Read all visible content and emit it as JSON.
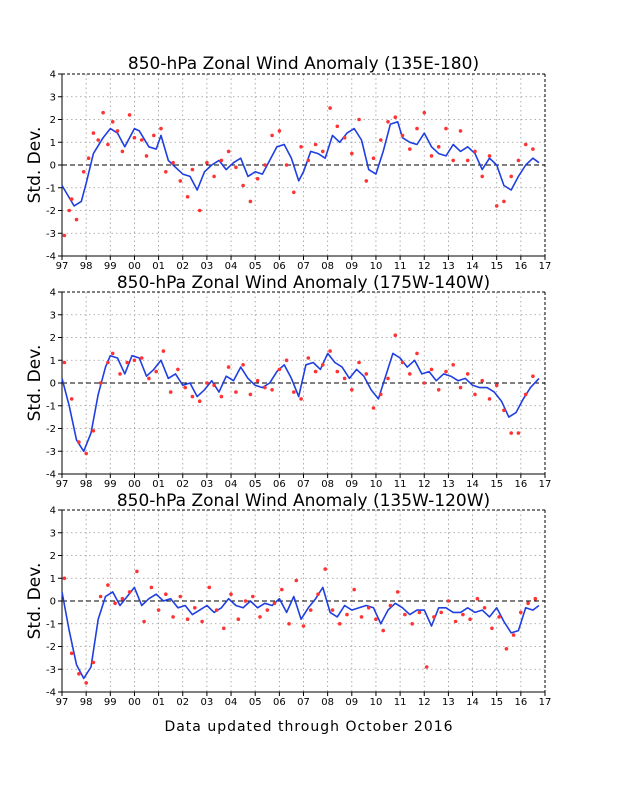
{
  "footer": "Data updated through October 2016",
  "colors": {
    "line": "#1f3fe0",
    "points": "#ff3333",
    "grid": "#999999",
    "frame": "#000000"
  },
  "chart_data": [
    {
      "type": "line",
      "title": "850-hPa Zonal Wind Anomaly (135E-180)",
      "ylabel": "Std. Dev.",
      "xlabel": "",
      "xlim": [
        1997,
        2017
      ],
      "ylim": [
        -4,
        4
      ],
      "xticks": [
        "97",
        "98",
        "99",
        "00",
        "01",
        "02",
        "03",
        "04",
        "05",
        "06",
        "07",
        "08",
        "09",
        "10",
        "11",
        "12",
        "13",
        "14",
        "15",
        "16",
        "17"
      ],
      "yticks": [
        -4,
        -3,
        -2,
        -1,
        0,
        1,
        2,
        3,
        4
      ],
      "grid": true,
      "series": [
        {
          "kind": "line",
          "x": [
            1997.0,
            1997.5,
            1997.8,
            1998.0,
            1998.3,
            1998.7,
            1999.0,
            1999.3,
            1999.6,
            2000.0,
            2000.2,
            2000.6,
            2000.9,
            2001.1,
            2001.4,
            2001.7,
            2002.0,
            2002.3,
            2002.6,
            2002.9,
            2003.2,
            2003.5,
            2003.8,
            2004.1,
            2004.4,
            2004.7,
            2005.0,
            2005.3,
            2005.6,
            2005.9,
            2006.2,
            2006.5,
            2006.8,
            2007.0,
            2007.3,
            2007.6,
            2007.9,
            2008.2,
            2008.5,
            2008.8,
            2009.1,
            2009.4,
            2009.7,
            2010.0,
            2010.3,
            2010.6,
            2010.9,
            2011.1,
            2011.4,
            2011.7,
            2012.0,
            2012.3,
            2012.6,
            2012.9,
            2013.2,
            2013.5,
            2013.8,
            2014.1,
            2014.4,
            2014.7,
            2015.0,
            2015.3,
            2015.6,
            2015.9,
            2016.2,
            2016.5,
            2016.75
          ],
          "y": [
            -0.9,
            -1.8,
            -1.6,
            -0.8,
            0.5,
            1.2,
            1.6,
            1.4,
            0.8,
            1.6,
            1.5,
            0.8,
            0.7,
            1.3,
            0.2,
            -0.1,
            -0.4,
            -0.5,
            -1.1,
            -0.3,
            0.0,
            0.2,
            -0.2,
            0.1,
            0.3,
            -0.5,
            -0.3,
            -0.4,
            0.2,
            0.8,
            0.9,
            0.3,
            -0.7,
            -0.3,
            0.6,
            0.5,
            0.3,
            1.3,
            1.0,
            1.4,
            1.6,
            1.1,
            -0.2,
            -0.4,
            0.6,
            1.8,
            1.9,
            1.2,
            1.0,
            0.9,
            1.4,
            0.8,
            0.5,
            0.4,
            0.9,
            0.6,
            0.8,
            0.5,
            -0.2,
            0.3,
            0.0,
            -0.9,
            -1.1,
            -0.5,
            0.0,
            0.3,
            0.1
          ]
        },
        {
          "kind": "points",
          "x": [
            1997.1,
            1997.3,
            1997.4,
            1997.6,
            1997.9,
            1998.1,
            1998.3,
            1998.5,
            1998.7,
            1998.9,
            1999.1,
            1999.3,
            1999.5,
            1999.8,
            2000.0,
            2000.3,
            2000.5,
            2000.8,
            2001.1,
            2001.3,
            2001.6,
            2001.9,
            2002.2,
            2002.4,
            2002.7,
            2003.0,
            2003.3,
            2003.6,
            2003.9,
            2004.2,
            2004.5,
            2004.8,
            2005.1,
            2005.4,
            2005.7,
            2006.0,
            2006.3,
            2006.6,
            2006.9,
            2007.2,
            2007.5,
            2007.8,
            2008.1,
            2008.4,
            2008.7,
            2009.0,
            2009.3,
            2009.6,
            2009.9,
            2010.2,
            2010.5,
            2010.8,
            2011.1,
            2011.4,
            2011.7,
            2012.0,
            2012.3,
            2012.6,
            2012.9,
            2013.2,
            2013.5,
            2013.8,
            2014.1,
            2014.4,
            2014.7,
            2015.0,
            2015.3,
            2015.6,
            2015.9,
            2016.2,
            2016.5
          ],
          "y": [
            -3.1,
            -2.0,
            -1.5,
            -2.4,
            -0.3,
            0.3,
            1.4,
            1.1,
            2.3,
            0.9,
            1.9,
            1.5,
            0.6,
            2.2,
            1.2,
            1.1,
            0.4,
            1.3,
            1.6,
            -0.3,
            0.1,
            -0.7,
            -1.4,
            -0.2,
            -2.0,
            0.1,
            -0.5,
            0.2,
            0.6,
            -0.1,
            -0.9,
            -1.6,
            -0.6,
            0.0,
            1.3,
            1.5,
            0.0,
            -1.2,
            0.8,
            0.2,
            0.9,
            0.6,
            2.5,
            1.7,
            1.2,
            0.5,
            2.0,
            -0.7,
            0.3,
            1.1,
            1.9,
            2.1,
            1.3,
            0.7,
            1.6,
            2.3,
            0.4,
            0.8,
            1.6,
            0.2,
            1.5,
            0.2,
            0.6,
            -0.5,
            0.4,
            -1.8,
            -1.6,
            -0.5,
            0.2,
            0.9,
            0.7
          ]
        }
      ]
    },
    {
      "type": "line",
      "title": "850-hPa Zonal Wind Anomaly (175W-140W)",
      "ylabel": "Std. Dev.",
      "xlabel": "",
      "xlim": [
        1997,
        2017
      ],
      "ylim": [
        -4,
        4
      ],
      "xticks": [
        "97",
        "98",
        "99",
        "00",
        "01",
        "02",
        "03",
        "04",
        "05",
        "06",
        "07",
        "08",
        "09",
        "10",
        "11",
        "12",
        "13",
        "14",
        "15",
        "16",
        "17"
      ],
      "yticks": [
        -4,
        -3,
        -2,
        -1,
        0,
        1,
        2,
        3,
        4
      ],
      "grid": true,
      "series": [
        {
          "kind": "line",
          "x": [
            1997.0,
            1997.3,
            1997.6,
            1997.9,
            1998.2,
            1998.5,
            1998.8,
            1999.0,
            1999.3,
            1999.6,
            1999.9,
            2000.2,
            2000.5,
            2000.8,
            2001.1,
            2001.4,
            2001.7,
            2002.0,
            2002.3,
            2002.6,
            2002.9,
            2003.2,
            2003.5,
            2003.8,
            2004.1,
            2004.4,
            2004.7,
            2005.0,
            2005.3,
            2005.6,
            2005.9,
            2006.2,
            2006.5,
            2006.8,
            2007.1,
            2007.4,
            2007.7,
            2008.0,
            2008.3,
            2008.6,
            2008.9,
            2009.2,
            2009.5,
            2009.8,
            2010.1,
            2010.4,
            2010.7,
            2011.0,
            2011.3,
            2011.6,
            2011.9,
            2012.2,
            2012.5,
            2012.8,
            2013.1,
            2013.4,
            2013.7,
            2014.0,
            2014.3,
            2014.6,
            2014.9,
            2015.2,
            2015.5,
            2015.8,
            2016.1,
            2016.4,
            2016.75
          ],
          "y": [
            0.2,
            -1.0,
            -2.5,
            -3.0,
            -2.2,
            -0.5,
            0.7,
            1.2,
            1.1,
            0.4,
            1.2,
            1.1,
            0.3,
            0.6,
            1.0,
            0.2,
            0.4,
            -0.1,
            0.0,
            -0.6,
            -0.3,
            0.1,
            -0.4,
            0.3,
            0.1,
            0.7,
            0.2,
            -0.1,
            -0.2,
            0.0,
            0.5,
            0.8,
            0.2,
            -0.6,
            0.8,
            0.9,
            0.6,
            1.3,
            0.9,
            0.7,
            0.2,
            0.6,
            0.3,
            -0.3,
            -0.7,
            0.3,
            1.3,
            1.1,
            0.7,
            1.0,
            0.4,
            0.5,
            0.1,
            0.4,
            0.3,
            0.1,
            0.2,
            -0.1,
            -0.2,
            -0.2,
            -0.4,
            -0.8,
            -1.5,
            -1.3,
            -0.7,
            -0.2,
            0.2
          ]
        },
        {
          "kind": "points",
          "x": [
            1997.1,
            1997.4,
            1997.7,
            1998.0,
            1998.3,
            1998.6,
            1998.9,
            1999.1,
            1999.4,
            1999.7,
            2000.0,
            2000.3,
            2000.6,
            2000.9,
            2001.2,
            2001.5,
            2001.8,
            2002.1,
            2002.4,
            2002.7,
            2003.0,
            2003.3,
            2003.6,
            2003.9,
            2004.2,
            2004.5,
            2004.8,
            2005.1,
            2005.4,
            2005.7,
            2006.0,
            2006.3,
            2006.6,
            2006.9,
            2007.2,
            2007.5,
            2007.8,
            2008.1,
            2008.4,
            2008.7,
            2009.0,
            2009.3,
            2009.6,
            2009.9,
            2010.2,
            2010.5,
            2010.8,
            2011.1,
            2011.4,
            2011.7,
            2012.0,
            2012.3,
            2012.6,
            2012.9,
            2013.2,
            2013.5,
            2013.8,
            2014.1,
            2014.4,
            2014.7,
            2015.0,
            2015.3,
            2015.6,
            2015.9,
            2016.2,
            2016.5
          ],
          "y": [
            0.9,
            -0.7,
            -2.6,
            -3.1,
            -2.1,
            0.0,
            0.9,
            1.3,
            0.4,
            0.9,
            1.0,
            1.1,
            0.2,
            0.5,
            1.4,
            -0.4,
            0.6,
            -0.2,
            -0.6,
            -0.8,
            0.0,
            -0.1,
            -0.6,
            0.7,
            -0.4,
            0.8,
            -0.5,
            0.1,
            -0.2,
            -0.3,
            0.6,
            1.0,
            -0.4,
            -0.7,
            1.1,
            0.5,
            0.8,
            1.4,
            0.5,
            0.2,
            -0.3,
            0.9,
            0.4,
            -1.1,
            -0.5,
            0.2,
            2.1,
            0.9,
            0.4,
            1.3,
            0.0,
            0.6,
            -0.3,
            0.5,
            0.8,
            -0.2,
            0.4,
            -0.5,
            0.1,
            -0.7,
            -0.1,
            -1.2,
            -2.2,
            -2.2,
            -0.5,
            0.3
          ]
        }
      ]
    },
    {
      "type": "line",
      "title": "850-hPa Zonal Wind Anomaly (135W-120W)",
      "ylabel": "Std. Dev.",
      "xlabel": "",
      "xlim": [
        1997,
        2017
      ],
      "ylim": [
        -4,
        4
      ],
      "xticks": [
        "97",
        "98",
        "99",
        "00",
        "01",
        "02",
        "03",
        "04",
        "05",
        "06",
        "07",
        "08",
        "09",
        "10",
        "11",
        "12",
        "13",
        "14",
        "15",
        "16",
        "17"
      ],
      "yticks": [
        -4,
        -3,
        -2,
        -1,
        0,
        1,
        2,
        3,
        4
      ],
      "grid": true,
      "series": [
        {
          "kind": "line",
          "x": [
            1997.0,
            1997.3,
            1997.6,
            1997.9,
            1998.2,
            1998.5,
            1998.8,
            1999.1,
            1999.4,
            1999.7,
            2000.0,
            2000.3,
            2000.6,
            2000.9,
            2001.2,
            2001.5,
            2001.8,
            2002.1,
            2002.4,
            2002.7,
            2003.0,
            2003.3,
            2003.6,
            2003.9,
            2004.2,
            2004.5,
            2004.8,
            2005.1,
            2005.4,
            2005.7,
            2006.0,
            2006.3,
            2006.6,
            2006.9,
            2007.2,
            2007.5,
            2007.8,
            2008.1,
            2008.4,
            2008.7,
            2009.0,
            2009.3,
            2009.6,
            2009.9,
            2010.2,
            2010.5,
            2010.8,
            2011.1,
            2011.4,
            2011.7,
            2012.0,
            2012.3,
            2012.6,
            2012.9,
            2013.2,
            2013.5,
            2013.8,
            2014.1,
            2014.4,
            2014.7,
            2015.0,
            2015.3,
            2015.6,
            2015.9,
            2016.2,
            2016.5,
            2016.75
          ],
          "y": [
            0.4,
            -1.3,
            -2.8,
            -3.4,
            -2.9,
            -0.8,
            0.2,
            0.4,
            -0.2,
            0.2,
            0.6,
            -0.2,
            0.1,
            0.3,
            0.0,
            0.1,
            -0.3,
            -0.2,
            -0.6,
            -0.4,
            -0.2,
            -0.5,
            -0.3,
            0.1,
            -0.2,
            -0.3,
            0.0,
            -0.3,
            -0.1,
            -0.2,
            0.1,
            -0.5,
            0.2,
            -0.8,
            -0.3,
            0.1,
            0.6,
            -0.5,
            -0.7,
            -0.2,
            -0.4,
            -0.3,
            -0.2,
            -0.3,
            -1.0,
            -0.4,
            -0.1,
            -0.3,
            -0.6,
            -0.4,
            -0.4,
            -1.1,
            -0.3,
            -0.3,
            -0.5,
            -0.5,
            -0.3,
            -0.5,
            -0.4,
            -0.7,
            -0.3,
            -0.9,
            -1.4,
            -1.3,
            -0.3,
            -0.4,
            -0.2
          ]
        },
        {
          "kind": "points",
          "x": [
            1997.1,
            1997.4,
            1997.7,
            1998.0,
            1998.3,
            1998.6,
            1998.9,
            1999.2,
            1999.5,
            1999.8,
            2000.1,
            2000.4,
            2000.7,
            2001.0,
            2001.3,
            2001.6,
            2001.9,
            2002.2,
            2002.5,
            2002.8,
            2003.1,
            2003.4,
            2003.7,
            2004.0,
            2004.3,
            2004.6,
            2004.9,
            2005.2,
            2005.5,
            2005.8,
            2006.1,
            2006.4,
            2006.7,
            2007.0,
            2007.3,
            2007.6,
            2007.9,
            2008.2,
            2008.5,
            2008.8,
            2009.1,
            2009.4,
            2009.7,
            2010.0,
            2010.3,
            2010.6,
            2010.9,
            2011.2,
            2011.5,
            2011.8,
            2012.1,
            2012.4,
            2012.7,
            2013.0,
            2013.3,
            2013.6,
            2013.9,
            2014.2,
            2014.5,
            2014.8,
            2015.1,
            2015.4,
            2015.7,
            2016.0,
            2016.3,
            2016.6
          ],
          "y": [
            1.0,
            -2.3,
            -3.2,
            -3.6,
            -2.7,
            0.2,
            0.7,
            -0.1,
            0.1,
            0.4,
            1.3,
            -0.9,
            0.6,
            -0.4,
            0.3,
            -0.7,
            0.2,
            -0.8,
            -0.3,
            -0.9,
            0.6,
            -0.4,
            -1.2,
            0.3,
            -0.8,
            0.0,
            0.2,
            -0.7,
            -0.4,
            -0.1,
            0.5,
            -1.0,
            0.9,
            -1.1,
            -0.4,
            0.3,
            1.4,
            -0.4,
            -1.0,
            -0.6,
            0.5,
            -0.7,
            -0.3,
            -0.8,
            -1.3,
            -0.2,
            0.4,
            -0.6,
            -1.0,
            -0.5,
            -2.9,
            -0.7,
            -0.5,
            0.0,
            -0.9,
            -0.6,
            -0.8,
            0.1,
            -0.3,
            -1.2,
            -0.7,
            -2.1,
            -1.5,
            -0.5,
            -0.1,
            0.1
          ]
        }
      ]
    }
  ]
}
